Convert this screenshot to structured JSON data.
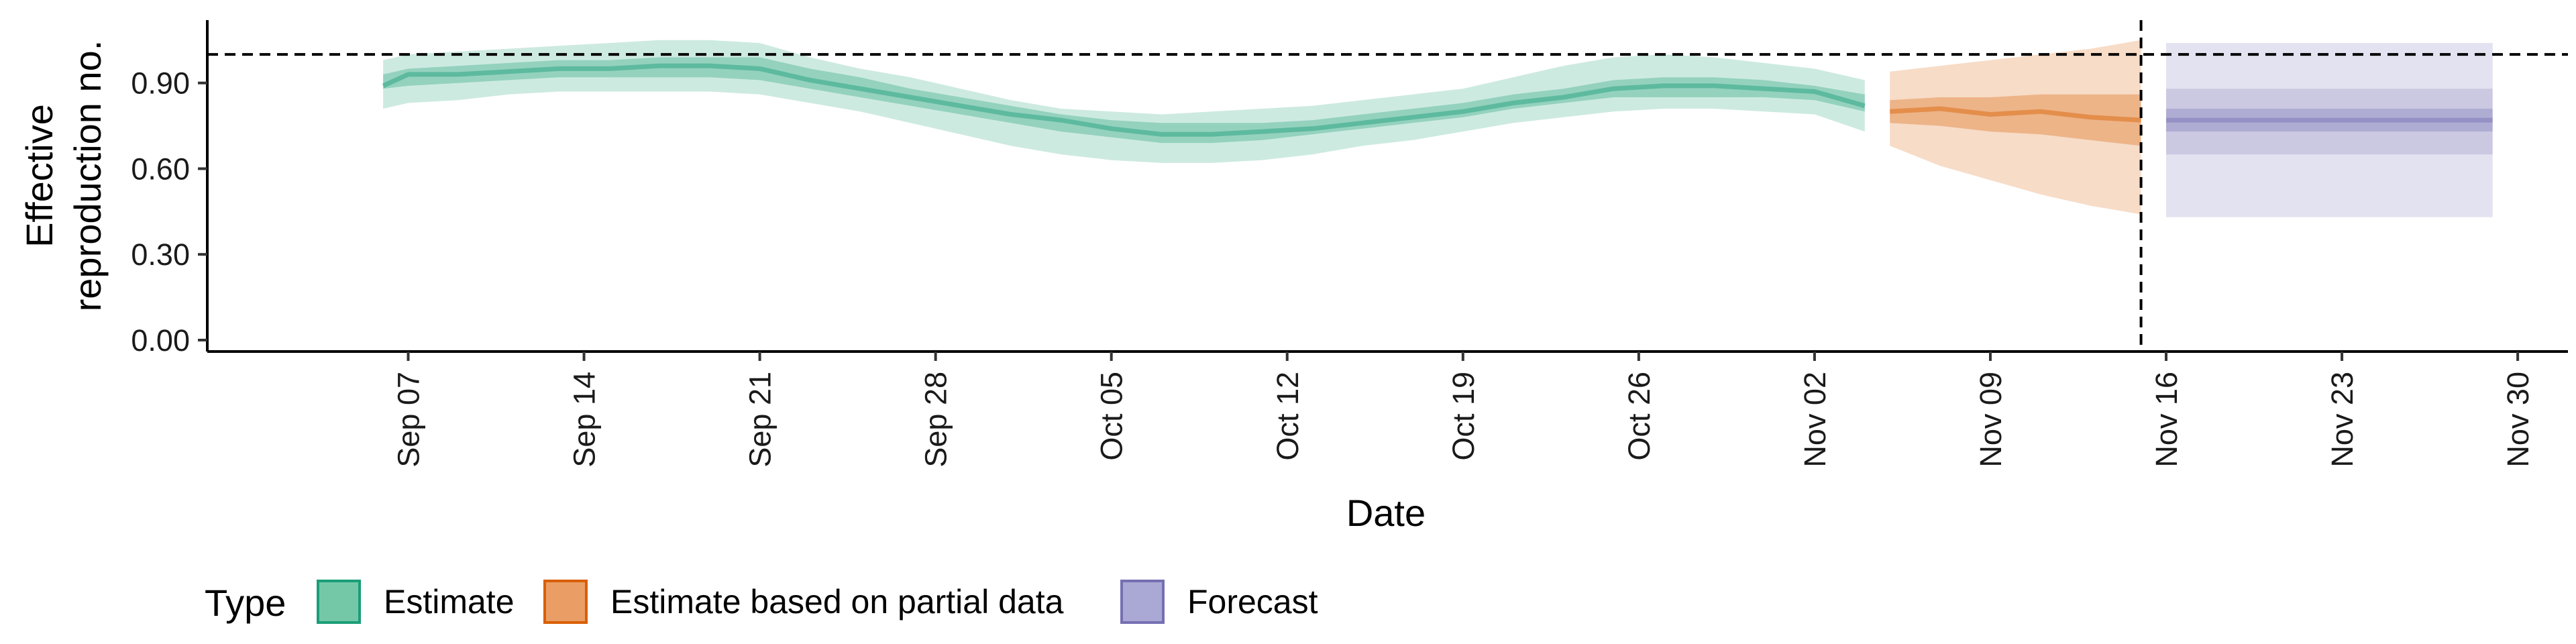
{
  "chart_data": {
    "type": "area",
    "xlabel": "Date",
    "ylabel_lines": [
      "Effective",
      "reproduction no."
    ],
    "x_ticks": [
      "Sep 07",
      "Sep 14",
      "Sep 21",
      "Sep 28",
      "Oct 05",
      "Oct 12",
      "Oct 19",
      "Oct 26",
      "Nov 02",
      "Nov 09",
      "Nov 16",
      "Nov 23",
      "Nov 30"
    ],
    "x_tick_dates": [
      "2020-09-07",
      "2020-09-14",
      "2020-09-21",
      "2020-09-28",
      "2020-10-05",
      "2020-10-12",
      "2020-10-19",
      "2020-10-26",
      "2020-11-02",
      "2020-11-09",
      "2020-11-16",
      "2020-11-23",
      "2020-11-30"
    ],
    "x_range": [
      "2020-08-30",
      "2020-12-02"
    ],
    "y_ticks": [
      0.0,
      0.3,
      0.6,
      0.9
    ],
    "y_tick_labels": [
      "0.00",
      "0.30",
      "0.60",
      "0.90"
    ],
    "ylim": [
      -0.04,
      1.12
    ],
    "reference_hline": 1.0,
    "reference_vline": "2020-11-15",
    "grid": false,
    "legend": {
      "title": "Type",
      "position": "bottom-left",
      "entries": [
        {
          "label": "Estimate",
          "fill": "#74c8a8",
          "stroke": "#1b9e77"
        },
        {
          "label": "Estimate based on partial data",
          "fill": "#ea9e66",
          "stroke": "#d95f02"
        },
        {
          "label": "Forecast",
          "fill": "#aaa8d4",
          "stroke": "#7570b3"
        }
      ]
    },
    "series": [
      {
        "name": "Estimate",
        "color": "#1b9e77",
        "x": [
          "2020-09-06",
          "2020-09-07",
          "2020-09-09",
          "2020-09-11",
          "2020-09-13",
          "2020-09-15",
          "2020-09-17",
          "2020-09-19",
          "2020-09-21",
          "2020-09-23",
          "2020-09-25",
          "2020-09-27",
          "2020-09-29",
          "2020-10-01",
          "2020-10-03",
          "2020-10-05",
          "2020-10-07",
          "2020-10-09",
          "2020-10-11",
          "2020-10-13",
          "2020-10-15",
          "2020-10-17",
          "2020-10-19",
          "2020-10-21",
          "2020-10-23",
          "2020-10-25",
          "2020-10-27",
          "2020-10-29",
          "2020-10-31",
          "2020-11-02",
          "2020-11-04"
        ],
        "median": [
          0.89,
          0.93,
          0.93,
          0.94,
          0.95,
          0.95,
          0.96,
          0.96,
          0.95,
          0.91,
          0.88,
          0.85,
          0.82,
          0.79,
          0.77,
          0.74,
          0.72,
          0.72,
          0.73,
          0.74,
          0.76,
          0.78,
          0.8,
          0.83,
          0.85,
          0.88,
          0.89,
          0.89,
          0.88,
          0.87,
          0.82
        ],
        "q25": [
          0.88,
          0.89,
          0.9,
          0.91,
          0.92,
          0.92,
          0.92,
          0.92,
          0.91,
          0.88,
          0.85,
          0.82,
          0.79,
          0.76,
          0.73,
          0.71,
          0.69,
          0.69,
          0.7,
          0.72,
          0.74,
          0.76,
          0.78,
          0.81,
          0.83,
          0.85,
          0.85,
          0.85,
          0.85,
          0.84,
          0.8
        ],
        "q75": [
          0.93,
          0.95,
          0.96,
          0.97,
          0.98,
          0.98,
          0.99,
          0.99,
          0.99,
          0.95,
          0.92,
          0.88,
          0.85,
          0.82,
          0.79,
          0.77,
          0.76,
          0.76,
          0.76,
          0.77,
          0.79,
          0.81,
          0.83,
          0.86,
          0.88,
          0.91,
          0.92,
          0.92,
          0.91,
          0.89,
          0.86
        ],
        "q05": [
          0.81,
          0.83,
          0.84,
          0.86,
          0.87,
          0.87,
          0.87,
          0.87,
          0.86,
          0.83,
          0.8,
          0.76,
          0.72,
          0.68,
          0.65,
          0.63,
          0.62,
          0.62,
          0.63,
          0.65,
          0.68,
          0.7,
          0.73,
          0.76,
          0.78,
          0.8,
          0.81,
          0.81,
          0.8,
          0.79,
          0.73
        ],
        "q95": [
          0.98,
          1.0,
          1.01,
          1.02,
          1.03,
          1.04,
          1.05,
          1.05,
          1.04,
          0.99,
          0.95,
          0.92,
          0.88,
          0.84,
          0.81,
          0.8,
          0.79,
          0.8,
          0.81,
          0.82,
          0.84,
          0.86,
          0.88,
          0.92,
          0.96,
          0.99,
          1.0,
          0.99,
          0.97,
          0.95,
          0.91
        ]
      },
      {
        "name": "Estimate based on partial data",
        "color": "#d95f02",
        "x": [
          "2020-11-05",
          "2020-11-07",
          "2020-11-09",
          "2020-11-11",
          "2020-11-13",
          "2020-11-15"
        ],
        "median": [
          0.8,
          0.81,
          0.79,
          0.8,
          0.78,
          0.77
        ],
        "q25": [
          0.76,
          0.75,
          0.73,
          0.72,
          0.7,
          0.68
        ],
        "q75": [
          0.84,
          0.85,
          0.85,
          0.86,
          0.86,
          0.86
        ],
        "q05": [
          0.68,
          0.61,
          0.56,
          0.51,
          0.47,
          0.44
        ],
        "q95": [
          0.94,
          0.96,
          0.98,
          1.0,
          1.02,
          1.05
        ]
      },
      {
        "name": "Forecast",
        "color": "#7570b3",
        "x": [
          "2020-11-16",
          "2020-11-29"
        ],
        "median": [
          0.77,
          0.77
        ],
        "q25": [
          0.73,
          0.73
        ],
        "q75": [
          0.81,
          0.81
        ],
        "q05": [
          0.65,
          0.65
        ],
        "q95": [
          0.88,
          0.88
        ],
        "q_outer_lo": [
          0.43,
          0.43
        ],
        "q_outer_hi": [
          1.04,
          1.04
        ]
      }
    ]
  }
}
